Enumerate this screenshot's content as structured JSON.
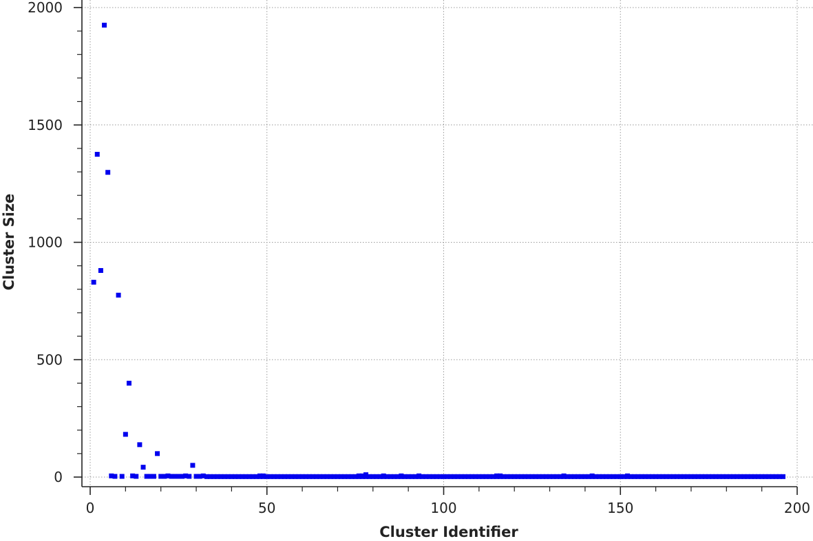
{
  "chart_data": {
    "type": "scatter",
    "title": "",
    "xlabel": "Cluster Identifier",
    "ylabel": "Cluster Size",
    "xlim": [
      0,
      200
    ],
    "ylim": [
      0,
      2000
    ],
    "xticks": [
      0,
      50,
      100,
      150,
      200
    ],
    "yticks": [
      0,
      500,
      1000,
      1500,
      2000
    ],
    "x_tick_labels": [
      "0",
      "50",
      "100",
      "150",
      "200"
    ],
    "y_tick_labels": [
      "0",
      "500",
      "1000",
      "1500",
      "2000"
    ],
    "grid": true,
    "marker_color": "#0000ee",
    "points": [
      [
        1,
        830
      ],
      [
        2,
        1375
      ],
      [
        3,
        880
      ],
      [
        4,
        1925
      ],
      [
        5,
        1298
      ],
      [
        6,
        5
      ],
      [
        7,
        3
      ],
      [
        8,
        775
      ],
      [
        9,
        3
      ],
      [
        10,
        182
      ],
      [
        11,
        400
      ],
      [
        12,
        5
      ],
      [
        13,
        3
      ],
      [
        14,
        138
      ],
      [
        15,
        42
      ],
      [
        16,
        3
      ],
      [
        17,
        3
      ],
      [
        18,
        3
      ],
      [
        19,
        100
      ],
      [
        20,
        3
      ],
      [
        21,
        3
      ],
      [
        22,
        5
      ],
      [
        23,
        3
      ],
      [
        24,
        3
      ],
      [
        25,
        3
      ],
      [
        26,
        3
      ],
      [
        27,
        5
      ],
      [
        28,
        3
      ],
      [
        29,
        50
      ],
      [
        30,
        3
      ],
      [
        31,
        3
      ],
      [
        32,
        5
      ],
      [
        48,
        5
      ],
      [
        49,
        5
      ],
      [
        76,
        5
      ],
      [
        77,
        5
      ],
      [
        78,
        10
      ],
      [
        83,
        5
      ],
      [
        88,
        5
      ],
      [
        93,
        5
      ],
      [
        115,
        5
      ],
      [
        116,
        5
      ],
      [
        134,
        5
      ],
      [
        142,
        5
      ],
      [
        152,
        5
      ]
    ],
    "baseline_run": {
      "from": 33,
      "to": 196,
      "value": 2
    }
  }
}
